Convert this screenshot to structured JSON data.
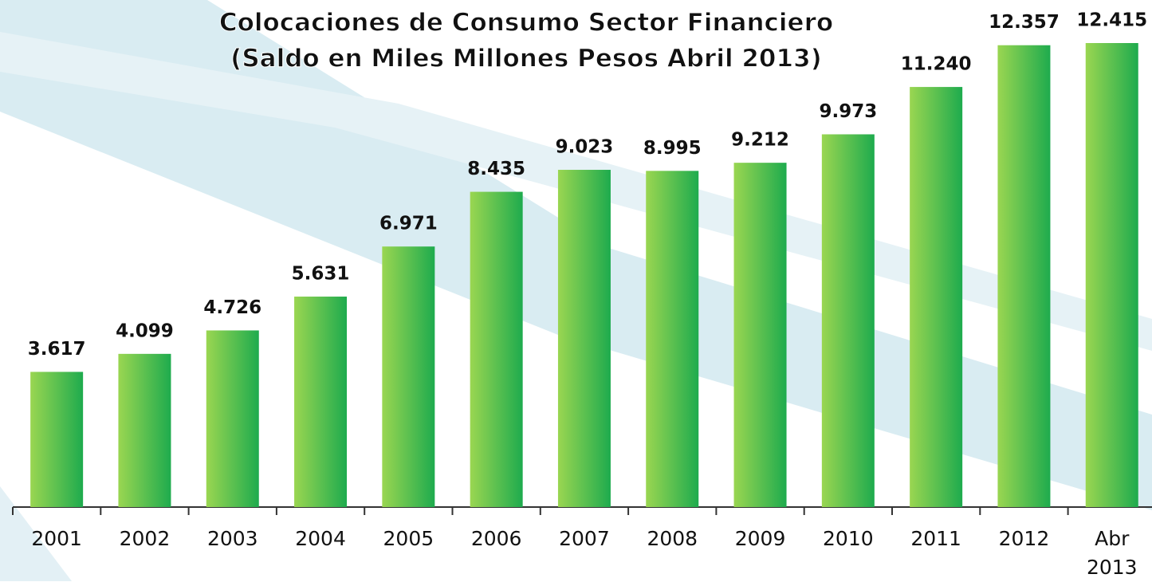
{
  "chart_data": {
    "type": "bar",
    "title": "Colocaciones de Consumo Sector Financiero",
    "subtitle": "(Saldo en Miles Millones Pesos Abril 2013)",
    "categories": [
      "2001",
      "2002",
      "2003",
      "2004",
      "2005",
      "2006",
      "2007",
      "2008",
      "2009",
      "2010",
      "2011",
      "2012",
      "Abr 2013"
    ],
    "values": [
      3617,
      4099,
      4726,
      5631,
      6971,
      8435,
      9023,
      8995,
      9212,
      9973,
      11240,
      12357,
      12415
    ],
    "value_labels": [
      "3.617",
      "4.099",
      "4.726",
      "5.631",
      "6.971",
      "8.435",
      "9.023",
      "8.995",
      "9.212",
      "9.973",
      "11.240",
      "12.357",
      "12.415"
    ],
    "color": "#8fd14f"
  }
}
